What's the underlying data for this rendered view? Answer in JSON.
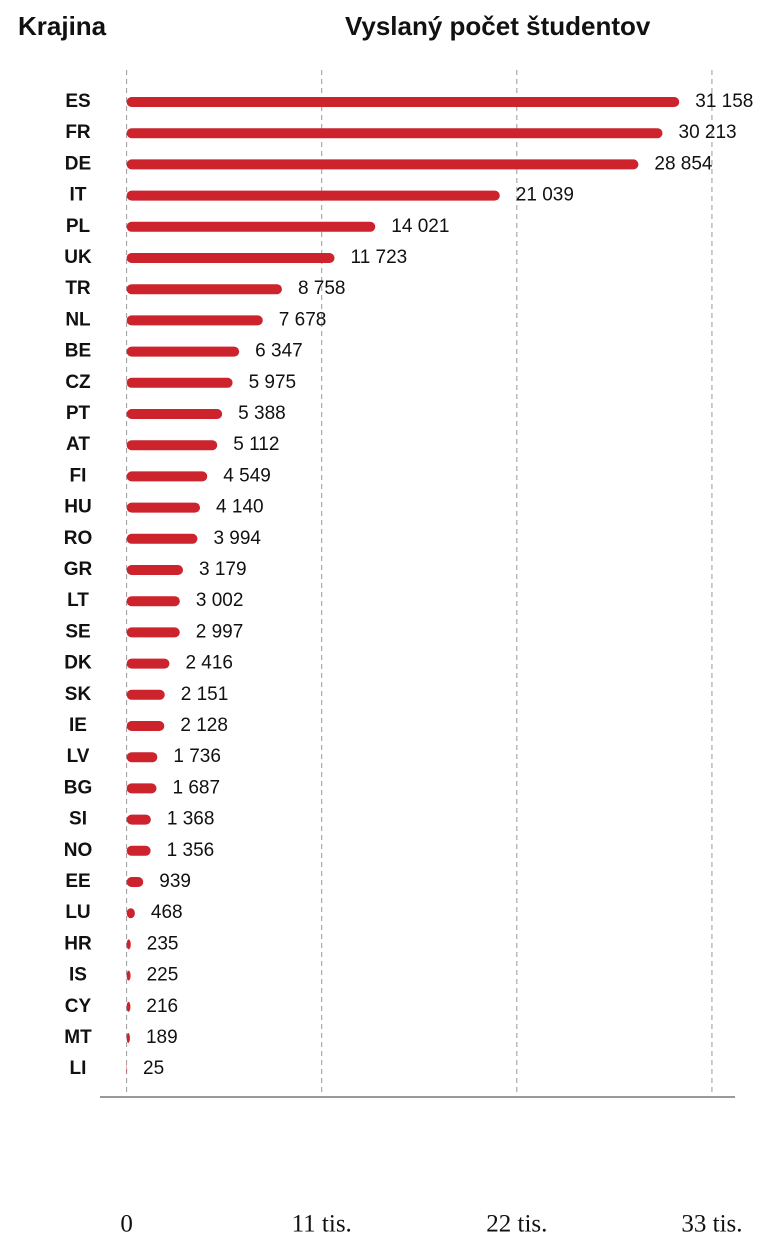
{
  "chart_data": {
    "type": "bar",
    "orientation": "horizontal",
    "category_header": "Krajina",
    "value_header": "Vyslaný počet študentov",
    "categories": [
      "ES",
      "FR",
      "DE",
      "IT",
      "PL",
      "UK",
      "TR",
      "NL",
      "BE",
      "CZ",
      "PT",
      "AT",
      "FI",
      "HU",
      "RO",
      "GR",
      "LT",
      "SE",
      "DK",
      "SK",
      "IE",
      "LV",
      "BG",
      "SI",
      "NO",
      "EE",
      "LU",
      "HR",
      "IS",
      "CY",
      "MT",
      "LI"
    ],
    "values": [
      31158,
      30213,
      28854,
      21039,
      14021,
      11723,
      8758,
      7678,
      6347,
      5975,
      5388,
      5112,
      4549,
      4140,
      3994,
      3179,
      3002,
      2997,
      2416,
      2151,
      2128,
      1736,
      1687,
      1368,
      1356,
      939,
      468,
      235,
      225,
      216,
      189,
      25
    ],
    "value_labels": [
      "31 158",
      "30 213",
      "28 854",
      "21 039",
      "14 021",
      "11 723",
      "8 758",
      "7 678",
      "6 347",
      "5 975",
      "5 388",
      "5 112",
      "4 549",
      "4 140",
      "3 994",
      "3 179",
      "3 002",
      "2 997",
      "2 416",
      "2 151",
      "2 128",
      "1 736",
      "1 687",
      "1 368",
      "1 356",
      "939",
      "468",
      "235",
      "225",
      "216",
      "189",
      "25"
    ],
    "color": "#cc232d",
    "xlim": [
      -1500,
      34300
    ],
    "xticks": [
      0,
      {
        "value": 11000,
        "label": "11 tis."
      },
      {
        "value": 22000,
        "label": "22 tis."
      },
      {
        "value": 33000,
        "label": "33 tis."
      }
    ],
    "grid": true
  }
}
